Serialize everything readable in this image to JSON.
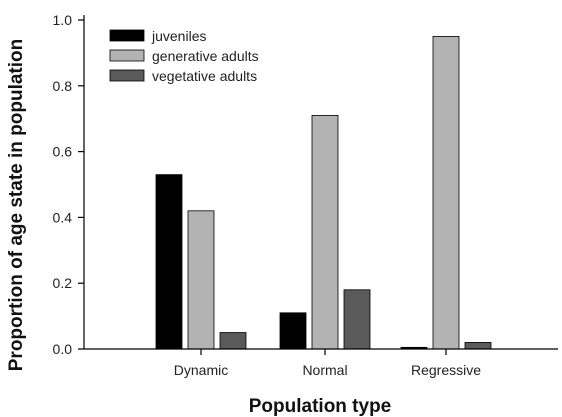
{
  "chart_data": {
    "type": "bar",
    "categories": [
      "Dynamic",
      "Normal",
      "Regressive"
    ],
    "series": [
      {
        "name": "juveniles",
        "values": [
          0.53,
          0.11,
          0.005
        ],
        "color": "#000000"
      },
      {
        "name": "generative adults",
        "values": [
          0.42,
          0.71,
          0.95
        ],
        "color": "#b3b3b3"
      },
      {
        "name": "vegetative adults",
        "values": [
          0.05,
          0.18,
          0.02
        ],
        "color": "#5a5a5a"
      }
    ],
    "title": "",
    "xlabel": "Population type",
    "ylabel": "Proportion of age state in population",
    "ylim": [
      0,
      1.0
    ],
    "yticks": [
      "0.0",
      "0.2",
      "0.4",
      "0.6",
      "0.8",
      "1.0"
    ],
    "grid": false,
    "legend_position": "top-left"
  }
}
